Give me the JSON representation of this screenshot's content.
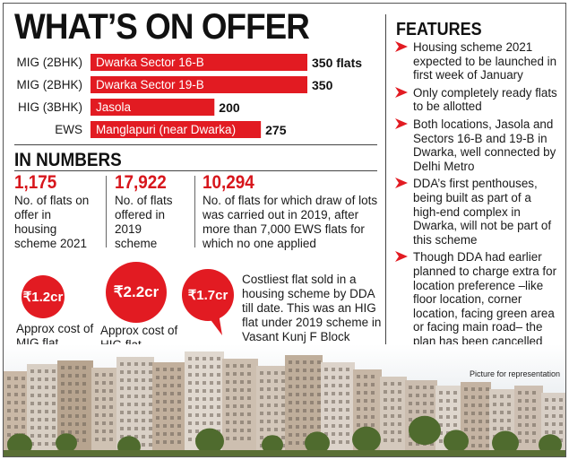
{
  "title": "WHAT’S ON OFFER",
  "chart_data": {
    "type": "bar",
    "orientation": "horizontal",
    "categories": [
      "MIG (2BHK)",
      "MIG (2BHK)",
      "HIG (3BHK)",
      "EWS"
    ],
    "bar_labels": [
      "Dwarka Sector 16-B",
      "Dwarka Sector 19-B",
      "Jasola",
      "Manglapuri (near Dwarka)"
    ],
    "values": [
      350,
      350,
      200,
      275
    ],
    "value_labels": [
      "350 flats",
      "350",
      "200",
      "275"
    ],
    "xlim": [
      0,
      350
    ],
    "bar_color": "#e21b22"
  },
  "in_numbers": {
    "heading": "IN NUMBERS",
    "items": [
      {
        "number": "1,175",
        "desc": "No. of flats on offer in housing scheme 2021"
      },
      {
        "number": "17,922",
        "desc": "No. of flats offered in 2019 scheme"
      },
      {
        "number": "10,294",
        "desc": "No. of flats for which draw of lots was carried out in 2019, after more than 7,000 EWS flats for which no one applied"
      }
    ]
  },
  "costs": [
    {
      "amount": "₹1.2cr",
      "desc": "Approx cost of MIG flat"
    },
    {
      "amount": "₹2.2cr",
      "desc": "Approx cost of HIG flat"
    },
    {
      "amount": "₹1.7cr",
      "desc": "Costliest flat sold in a housing scheme by DDA till date. This was an HIG flat under 2019 scheme in Vasant Kunj F Block"
    }
  ],
  "features": {
    "heading": "FEATURES",
    "items": [
      "Housing scheme 2021 expected to be launched in first week of January",
      "Only completely ready flats to be allotted",
      "Both locations, Jasola and Sectors 16-B and 19-B in Dwarka, well connected by Delhi Metro",
      "DDA’s first penthouses, being built as part of a high-end complex in Dwarka, will not be part of this scheme",
      "Though DDA had earlier planned to charge extra for location preference –like floor location, corner location, facing green area or facing main road– the plan has been cancelled"
    ]
  },
  "photo_caption": "Picture for representation",
  "accent_color": "#e21b22"
}
